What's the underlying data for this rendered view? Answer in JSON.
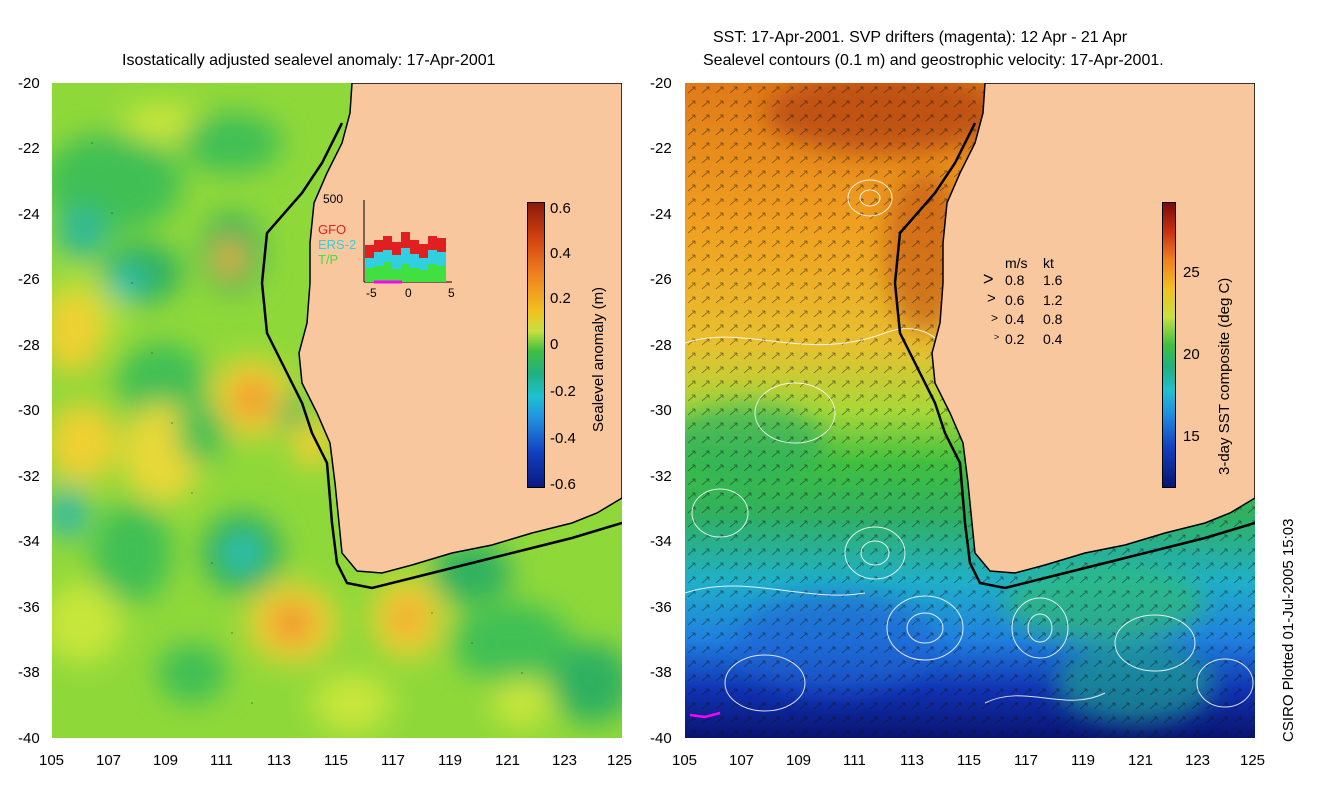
{
  "left": {
    "title": "Isostatically adjusted sealevel anomaly: 17-Apr-2001",
    "colorbar": {
      "label": "Sealevel anomaly (m)",
      "ticks": [
        "0.6",
        "0.4",
        "0.2",
        "0",
        "-0.2",
        "-0.4",
        "-0.6"
      ]
    },
    "inset": {
      "ymax": "500",
      "satellites": [
        "GFO",
        "ERS-2",
        "T/P"
      ],
      "xticks": [
        "-5",
        "0",
        "5"
      ]
    }
  },
  "right": {
    "title_line1": "SST: 17-Apr-2001. SVP drifters (magenta): 12 Apr - 21 Apr",
    "title_line2": "Sealevel contours (0.1 m) and geostrophic velocity: 17-Apr-2001.",
    "colorbar": {
      "label": "3-day SST composite (deg C)",
      "ticks": [
        "25",
        "20",
        "15"
      ]
    },
    "velocity_legend": {
      "header_ms": "m/s",
      "header_kt": "kt",
      "rows": [
        {
          "ms": "0.8",
          "kt": "1.6"
        },
        {
          "ms": "0.6",
          "kt": "1.2"
        },
        {
          "ms": "0.4",
          "kt": "0.8"
        },
        {
          "ms": "0.2",
          "kt": "0.4"
        }
      ]
    }
  },
  "axes": {
    "lat_ticks": [
      "-20",
      "-22",
      "-24",
      "-26",
      "-28",
      "-30",
      "-32",
      "-34",
      "-36",
      "-38",
      "-40"
    ],
    "lon_ticks": [
      "105",
      "107",
      "109",
      "111",
      "113",
      "115",
      "117",
      "119",
      "121",
      "123",
      "125"
    ]
  },
  "footer": "CSIRO Plotted 01-Jul-2005 15:03",
  "colors": {
    "land": "#f9c79d",
    "ssl_base": "#8fd83a",
    "sst_warm": "#d98a1e",
    "sst_cold": "#1a40c8"
  }
}
